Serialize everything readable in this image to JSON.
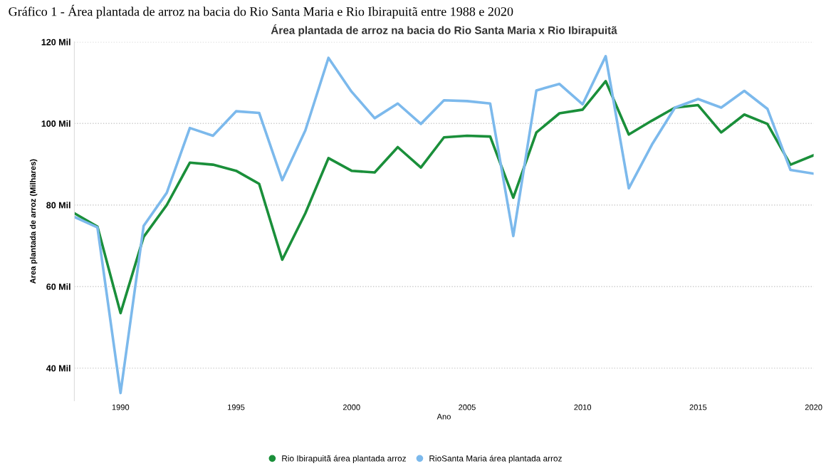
{
  "chart_data": {
    "type": "line",
    "title": "Área plantada de arroz na bacia do Rio Santa Maria x Rio Ibirapuitã",
    "annotations": [
      "Gráfico 1 - Área plantada de arroz na bacia do Rio Santa Maria e Rio Ibirapuitã entre 1988 e 2020"
    ],
    "xlabel": "Ano",
    "ylabel": "Area plantada de arroz (Milhares)",
    "x": [
      1988,
      1989,
      1990,
      1991,
      1992,
      1993,
      1994,
      1995,
      1996,
      1997,
      1998,
      1999,
      2000,
      2001,
      2002,
      2003,
      2004,
      2005,
      2006,
      2007,
      2008,
      2009,
      2010,
      2011,
      2012,
      2013,
      2014,
      2015,
      2016,
      2017,
      2018,
      2019,
      2020
    ],
    "series": [
      {
        "name": "Rio Ibirapuitã área plantada arroz",
        "color": "#1a8f3a",
        "values": [
          78.0,
          74.7,
          53.5,
          72.2,
          80.0,
          90.4,
          89.9,
          88.4,
          85.2,
          66.6,
          78.0,
          91.5,
          88.4,
          88.0,
          94.2,
          89.2,
          96.6,
          97.0,
          96.8,
          81.8,
          97.8,
          102.5,
          103.4,
          110.4,
          97.3,
          100.7,
          103.9,
          104.5,
          97.8,
          102.2,
          99.9,
          89.9,
          92.2
        ]
      },
      {
        "name": "RioSanta Maria área plantada arroz",
        "color": "#7cb9ec",
        "values": [
          77.1,
          74.5,
          33.9,
          74.9,
          83.0,
          98.9,
          97.0,
          103.0,
          102.6,
          86.1,
          98.3,
          116.1,
          107.8,
          101.3,
          104.9,
          99.9,
          105.7,
          105.5,
          104.9,
          72.4,
          108.1,
          109.7,
          104.7,
          116.5,
          84.1,
          94.8,
          103.9,
          106.0,
          103.9,
          108.0,
          103.6,
          88.6,
          87.7
        ]
      }
    ],
    "xlim": [
      1988,
      2020
    ],
    "xticks": [
      1990,
      1995,
      2000,
      2005,
      2010,
      2015,
      2020
    ],
    "ylim": [
      32,
      120
    ],
    "yticks": [
      {
        "value": 40,
        "label": "40 Mil"
      },
      {
        "value": 60,
        "label": "60 Mil"
      },
      {
        "value": 80,
        "label": "80 Mil"
      },
      {
        "value": 100,
        "label": "100 Mil"
      },
      {
        "value": 120,
        "label": "120 Mil"
      }
    ],
    "grid": "y",
    "legend": "bottom",
    "marker": "none",
    "line_style": "solid"
  }
}
